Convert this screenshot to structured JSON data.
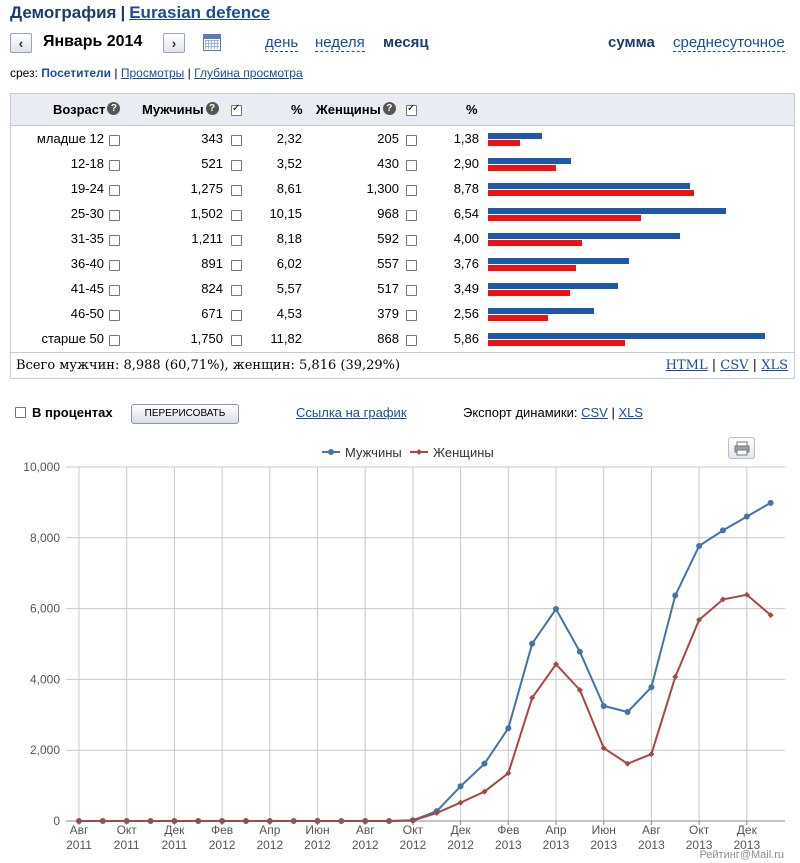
{
  "header": {
    "section": "Демография",
    "separator": "|",
    "site": "Eurasian defence"
  },
  "period": {
    "prev_icon": "‹",
    "next_icon": "›",
    "current": "Январь 2014",
    "calendar_icon": "calendar-icon",
    "links": [
      "день",
      "неделя",
      "месяц"
    ],
    "active": "месяц",
    "modes": [
      "сумма",
      "среднесуточное"
    ],
    "active_mode": "сумма"
  },
  "slice": {
    "label": "срез:",
    "items": [
      "Посетители",
      "Просмотры",
      "Глубина просмотра"
    ],
    "active": "Посетители",
    "separator": "|"
  },
  "table": {
    "headers": {
      "age": "Возраст",
      "men": "Мужчины",
      "pct1": "%",
      "women": "Женщины",
      "pct2": "%"
    },
    "help_icon": "?",
    "rows": [
      {
        "age": "младше 12",
        "men": "343",
        "men_pct": "2,32",
        "women": "205",
        "women_pct": "1,38",
        "m": 343,
        "f": 205
      },
      {
        "age": "12-18",
        "men": "521",
        "men_pct": "3,52",
        "women": "430",
        "women_pct": "2,90",
        "m": 521,
        "f": 430
      },
      {
        "age": "19-24",
        "men": "1,275",
        "men_pct": "8,61",
        "women": "1,300",
        "women_pct": "8,78",
        "m": 1275,
        "f": 1300
      },
      {
        "age": "25-30",
        "men": "1,502",
        "men_pct": "10,15",
        "women": "968",
        "women_pct": "6,54",
        "m": 1502,
        "f": 968
      },
      {
        "age": "31-35",
        "men": "1,211",
        "men_pct": "8,18",
        "women": "592",
        "women_pct": "4,00",
        "m": 1211,
        "f": 592
      },
      {
        "age": "36-40",
        "men": "891",
        "men_pct": "6,02",
        "women": "557",
        "women_pct": "3,76",
        "m": 891,
        "f": 557
      },
      {
        "age": "41-45",
        "men": "824",
        "men_pct": "5,57",
        "women": "517",
        "women_pct": "3,49",
        "m": 824,
        "f": 517
      },
      {
        "age": "46-50",
        "men": "671",
        "men_pct": "4,53",
        "women": "379",
        "women_pct": "2,56",
        "m": 671,
        "f": 379
      },
      {
        "age": "старше 50",
        "men": "1,750",
        "men_pct": "11,82",
        "women": "868",
        "women_pct": "5,86",
        "m": 1750,
        "f": 868
      }
    ],
    "bar_colors": {
      "men": "#1f58a8",
      "women": "#f01010"
    },
    "summary": "Всего мужчин: 8,988 (60,71%), женщин: 5,816 (39,29%)",
    "export": [
      "HTML",
      "CSV",
      "XLS"
    ],
    "export_sep": "|"
  },
  "controls": {
    "percent_label": "В процентах",
    "redraw_label": "ПЕРЕРИСОВАТЬ",
    "graph_link": "Ссылка на график",
    "export_label": "Экспорт динамики:",
    "export_csv": "CSV",
    "export_sep": "|",
    "export_xls": "XLS"
  },
  "print_icon": "printer-icon",
  "credit": "Рейтинг@Mail.ru",
  "chart_data": {
    "type": "line",
    "x_ticks": [
      "Авг 2011",
      "Окт 2011",
      "Дек 2011",
      "Фев 2012",
      "Апр 2012",
      "Июн 2012",
      "Авг 2012",
      "Окт 2012",
      "Дек 2012",
      "Фев 2013",
      "Апр 2013",
      "Июн 2013",
      "Авг 2013",
      "Окт 2013",
      "Дек 2013"
    ],
    "x": [
      "2011-08",
      "2011-09",
      "2011-10",
      "2011-11",
      "2011-12",
      "2012-01",
      "2012-02",
      "2012-03",
      "2012-04",
      "2012-05",
      "2012-06",
      "2012-07",
      "2012-08",
      "2012-09",
      "2012-10",
      "2012-11",
      "2012-12",
      "2013-01",
      "2013-02",
      "2013-03",
      "2013-04",
      "2013-05",
      "2013-06",
      "2013-07",
      "2013-08",
      "2013-09",
      "2013-10",
      "2013-11",
      "2013-12",
      "2014-01"
    ],
    "series": [
      {
        "name": "Мужчины",
        "color": "#4572a7",
        "values": [
          0,
          0,
          0,
          0,
          0,
          0,
          0,
          0,
          0,
          0,
          0,
          0,
          0,
          0,
          20,
          280,
          980,
          1620,
          2620,
          5010,
          5990,
          4780,
          3250,
          3080,
          3780,
          6370,
          7770,
          8210,
          8600,
          8988
        ]
      },
      {
        "name": "Женщины",
        "color": "#aa4643",
        "values": [
          0,
          0,
          0,
          0,
          0,
          0,
          0,
          0,
          0,
          0,
          0,
          0,
          0,
          0,
          10,
          230,
          520,
          830,
          1350,
          3480,
          4430,
          3700,
          2060,
          1620,
          1890,
          4070,
          5680,
          6260,
          6390,
          5816
        ]
      }
    ],
    "ylim": [
      0,
      10000
    ],
    "y_ticks": [
      "0",
      "2,000",
      "4,000",
      "6,000",
      "8,000",
      "10,000"
    ],
    "y_tick_values": [
      0,
      2000,
      4000,
      6000,
      8000,
      10000
    ],
    "legend": "top-center",
    "grid": true
  }
}
